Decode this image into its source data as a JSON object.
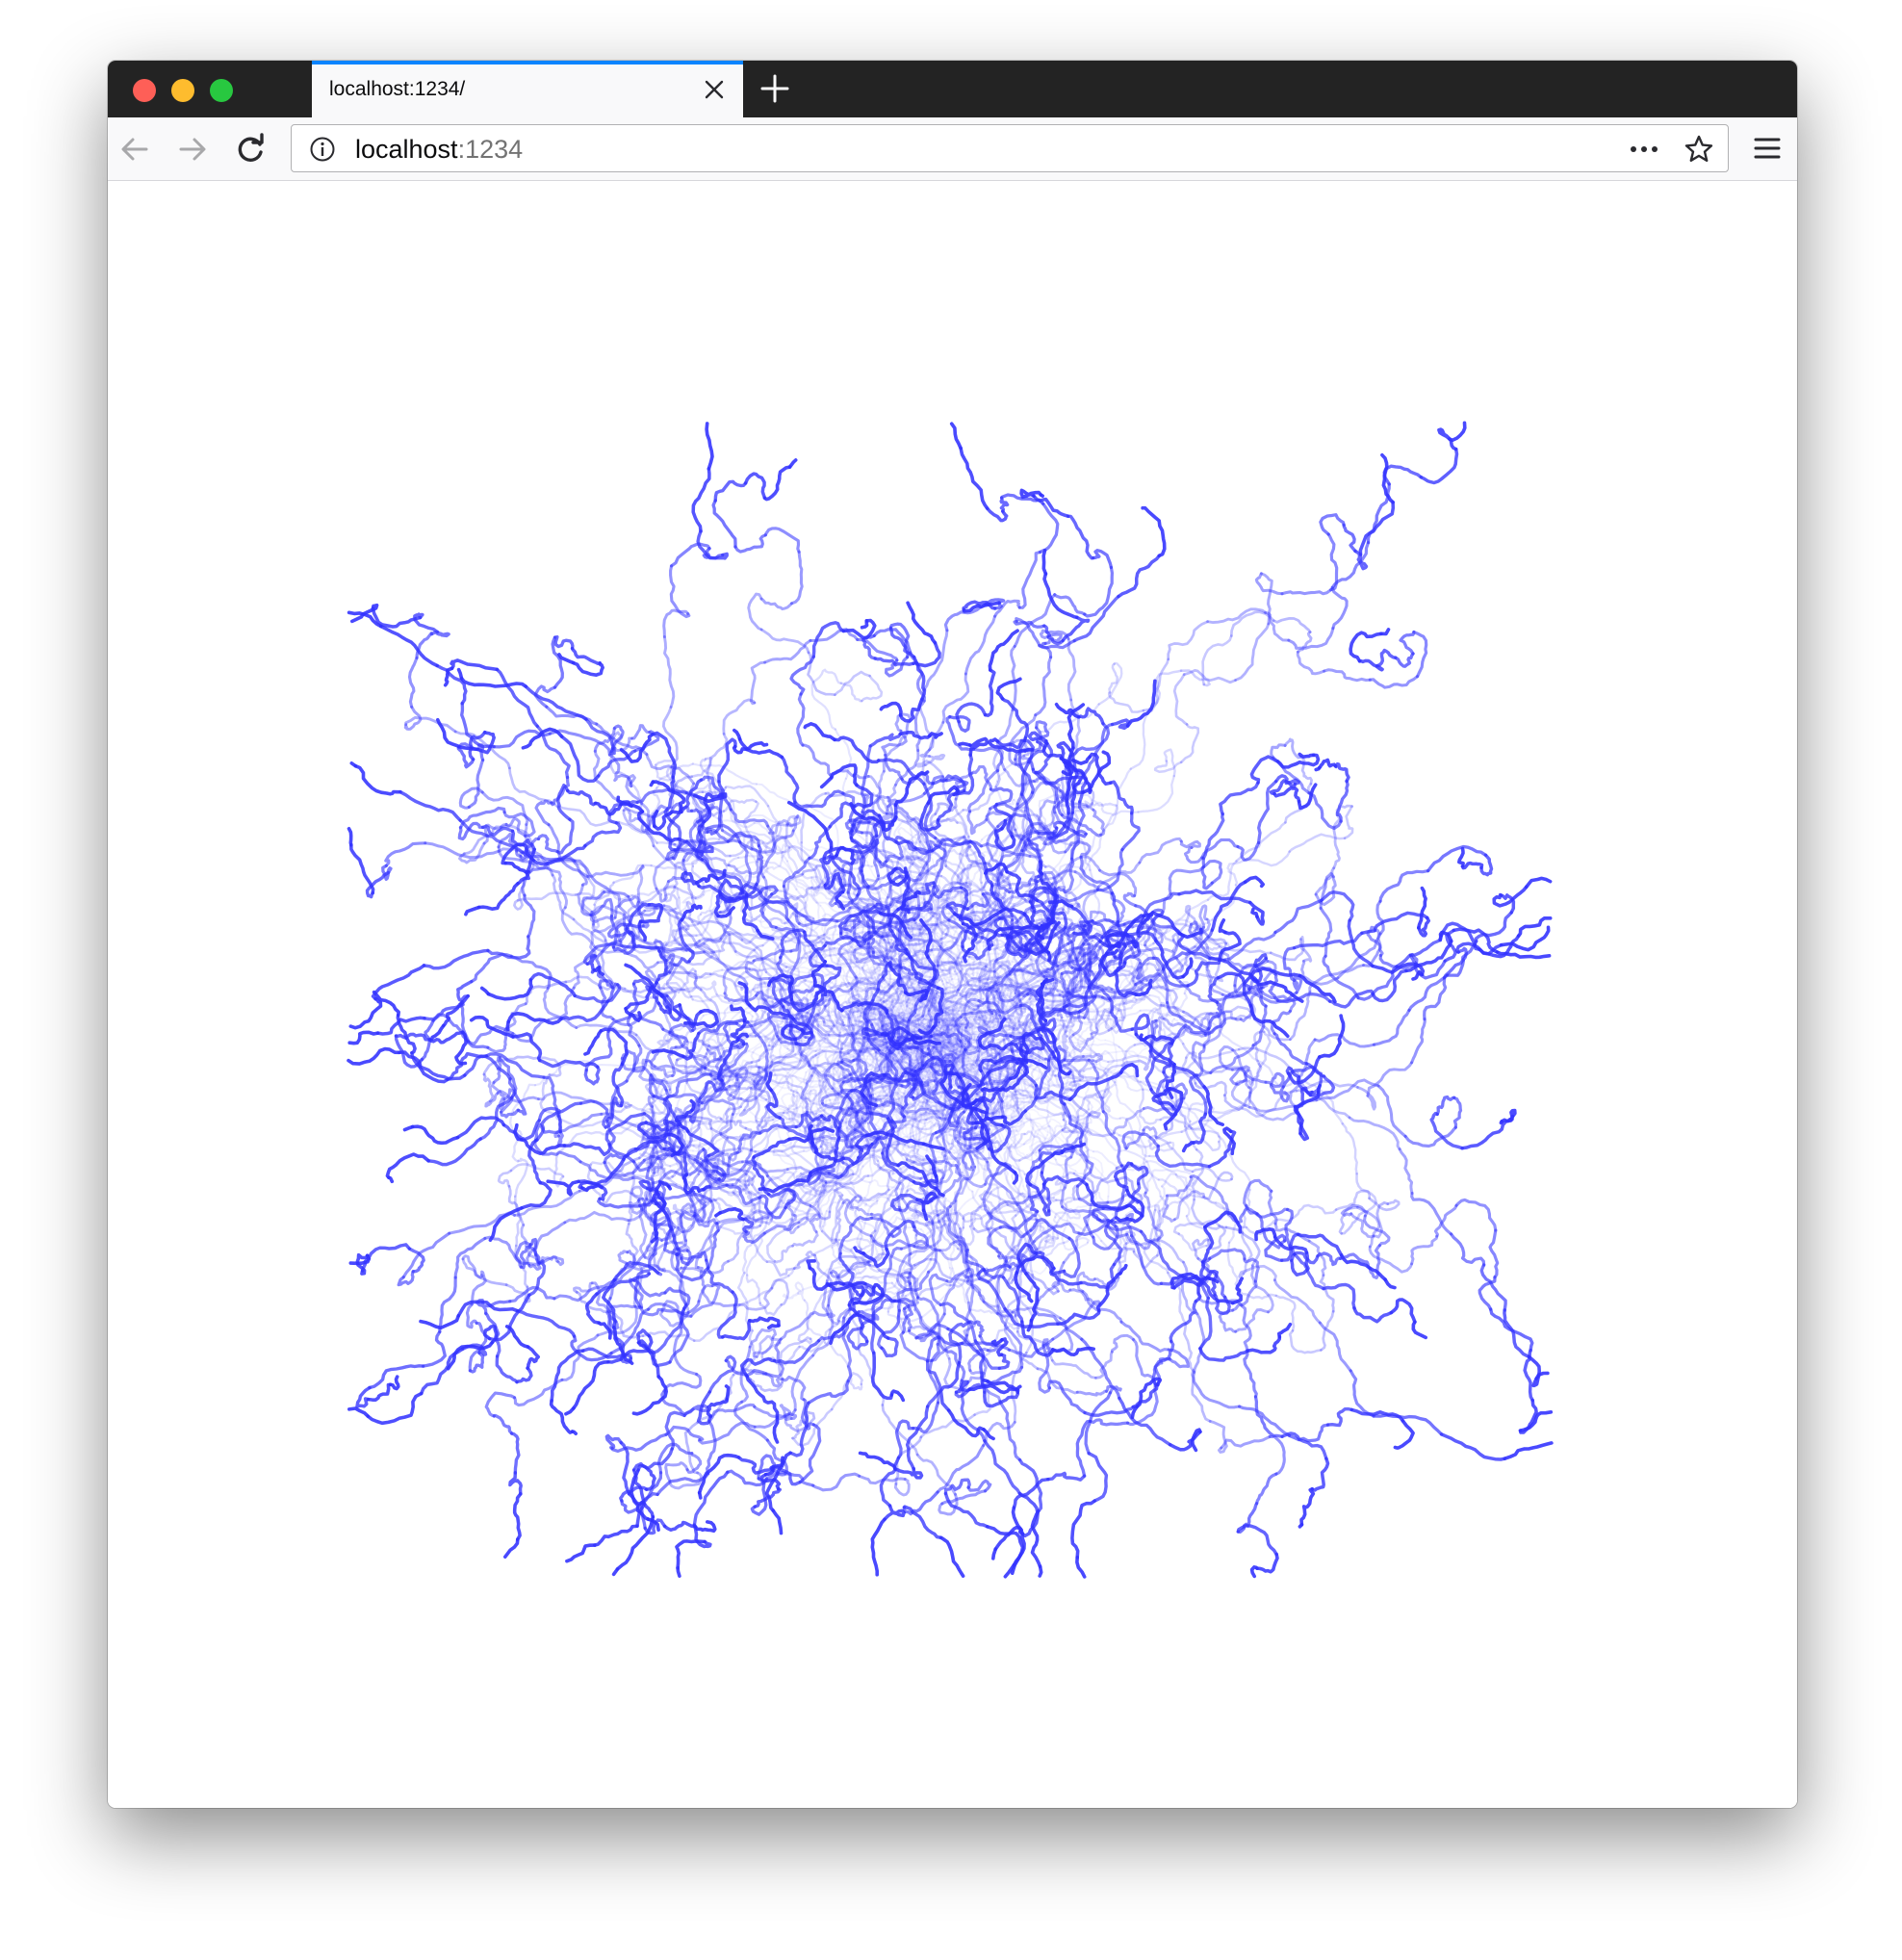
{
  "browser": {
    "tab": {
      "title": "localhost:1234/"
    },
    "url": {
      "host": "localhost",
      "port": ":1234"
    },
    "accent_color": "#0a84ff",
    "icons": {
      "back": "arrow-left-icon",
      "forward": "arrow-right-icon",
      "reload": "reload-icon",
      "info": "info-icon",
      "page_actions": "more-horizontal-icon",
      "bookmark": "star-icon",
      "menu": "hamburger-menu-icon",
      "close_tab": "close-icon",
      "new_tab": "plus-icon"
    }
  },
  "visualization": {
    "type": "random walks",
    "stroke_color": "#3333ff",
    "background": "#ffffff"
  }
}
